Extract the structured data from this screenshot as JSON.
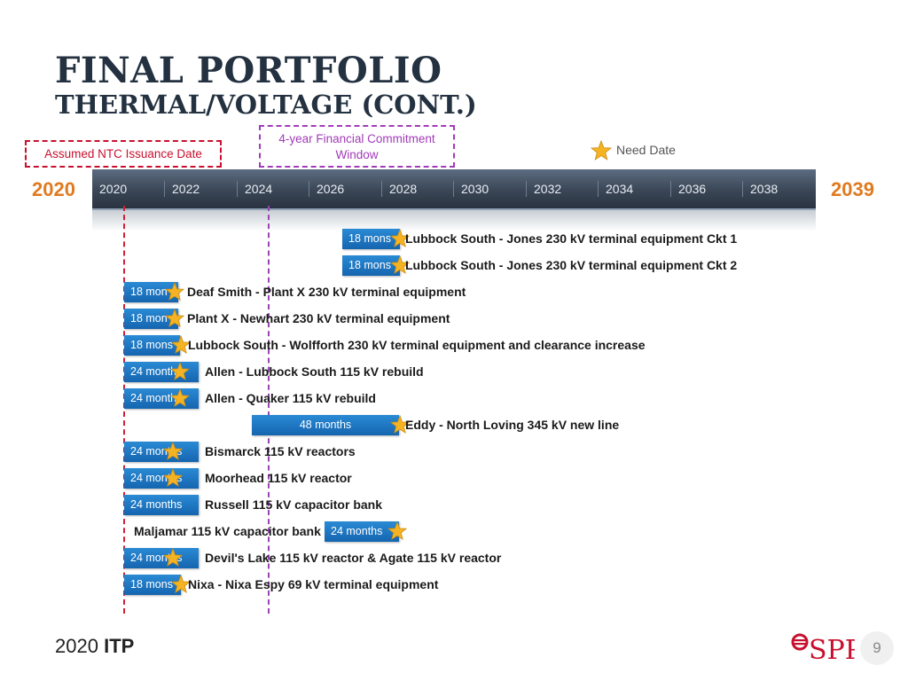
{
  "title": {
    "line1": "FINAL PORTFOLIO",
    "line2": "THERMAL/VOLTAGE (CONT.)"
  },
  "legend": {
    "ntc": "Assumed NTC Issuance Date",
    "financial_line1": "4-year Financial Commitment",
    "financial_line2": "Window",
    "need_date": "Need Date"
  },
  "timeline": {
    "start_year": "2020",
    "end_year": "2039",
    "ticks": [
      "2020",
      "2022",
      "2024",
      "2026",
      "2028",
      "2030",
      "2032",
      "2034",
      "2036",
      "2038"
    ]
  },
  "projects": [
    {
      "duration": "18 mons",
      "label": "Lubbock South  - Jones 230 kV terminal equipment Ckt 1"
    },
    {
      "duration": "18 mons",
      "label": "Lubbock South  - Jones 230 kV terminal equipment Ckt 2"
    },
    {
      "duration": "18 mon",
      "label": "Deaf Smith - Plant X 230 kV terminal equipment"
    },
    {
      "duration": "18 mon",
      "label": "Plant X - Newhart 230 kV terminal equipment"
    },
    {
      "duration": "18 mons",
      "label": "Lubbock South - Wolfforth 230 kV terminal equipment and clearance increase"
    },
    {
      "duration": "24 months",
      "label": "Allen - Lubbock South 115 kV rebuild"
    },
    {
      "duration": "24 months",
      "label": "Allen - Quaker 115 kV rebuild"
    },
    {
      "duration": "48 months",
      "label": "Eddy - North Loving 345 kV new line"
    },
    {
      "duration": "24 months",
      "label": "Bismarck 115 kV reactors"
    },
    {
      "duration": "24 months",
      "label": "Moorhead 115 kV reactor"
    },
    {
      "duration": "24 months",
      "label": "Russell 115 kV capacitor bank"
    },
    {
      "duration": "24 months",
      "label": "Maljamar 115 kV capacitor bank"
    },
    {
      "duration": "24 months",
      "label": "Devil's Lake 115 kV reactor & Agate 115 kV reactor"
    },
    {
      "duration": "18 mons",
      "label": "Nixa - Nixa Espy 69 kV terminal equipment"
    }
  ],
  "footer": {
    "year": "2020",
    "brand": "ITP",
    "logo_text": "SPP",
    "page": "9"
  },
  "colors": {
    "accent": "#e07a1f",
    "navy": "#233140",
    "bar_blue": "#1a73c0",
    "star": "#f5b323",
    "ntc_red": "#c8102e",
    "fin_purple": "#a23bb8"
  }
}
